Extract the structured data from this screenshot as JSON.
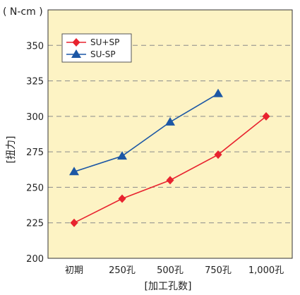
{
  "chart_data": {
    "type": "line",
    "unit_label": "( N-cm )",
    "ylabel": "[扭力]",
    "xlabel": "[加工孔数]",
    "categories": [
      "初期",
      "250孔",
      "500孔",
      "750孔",
      "1,000孔"
    ],
    "ylim": [
      200,
      375
    ],
    "yticks": [
      200,
      225,
      250,
      275,
      300,
      325,
      350
    ],
    "grid": "horizontal dashed",
    "legend_position": "top-left",
    "plot_background": "#fdf3c4",
    "series": [
      {
        "name": "SU+SP",
        "marker": "diamond",
        "color": "#e8232f",
        "values": [
          225,
          242,
          255,
          273,
          300
        ]
      },
      {
        "name": "SU-SP",
        "marker": "triangle",
        "color": "#1c57a5",
        "values": [
          261,
          272,
          296,
          316,
          null
        ]
      }
    ]
  }
}
